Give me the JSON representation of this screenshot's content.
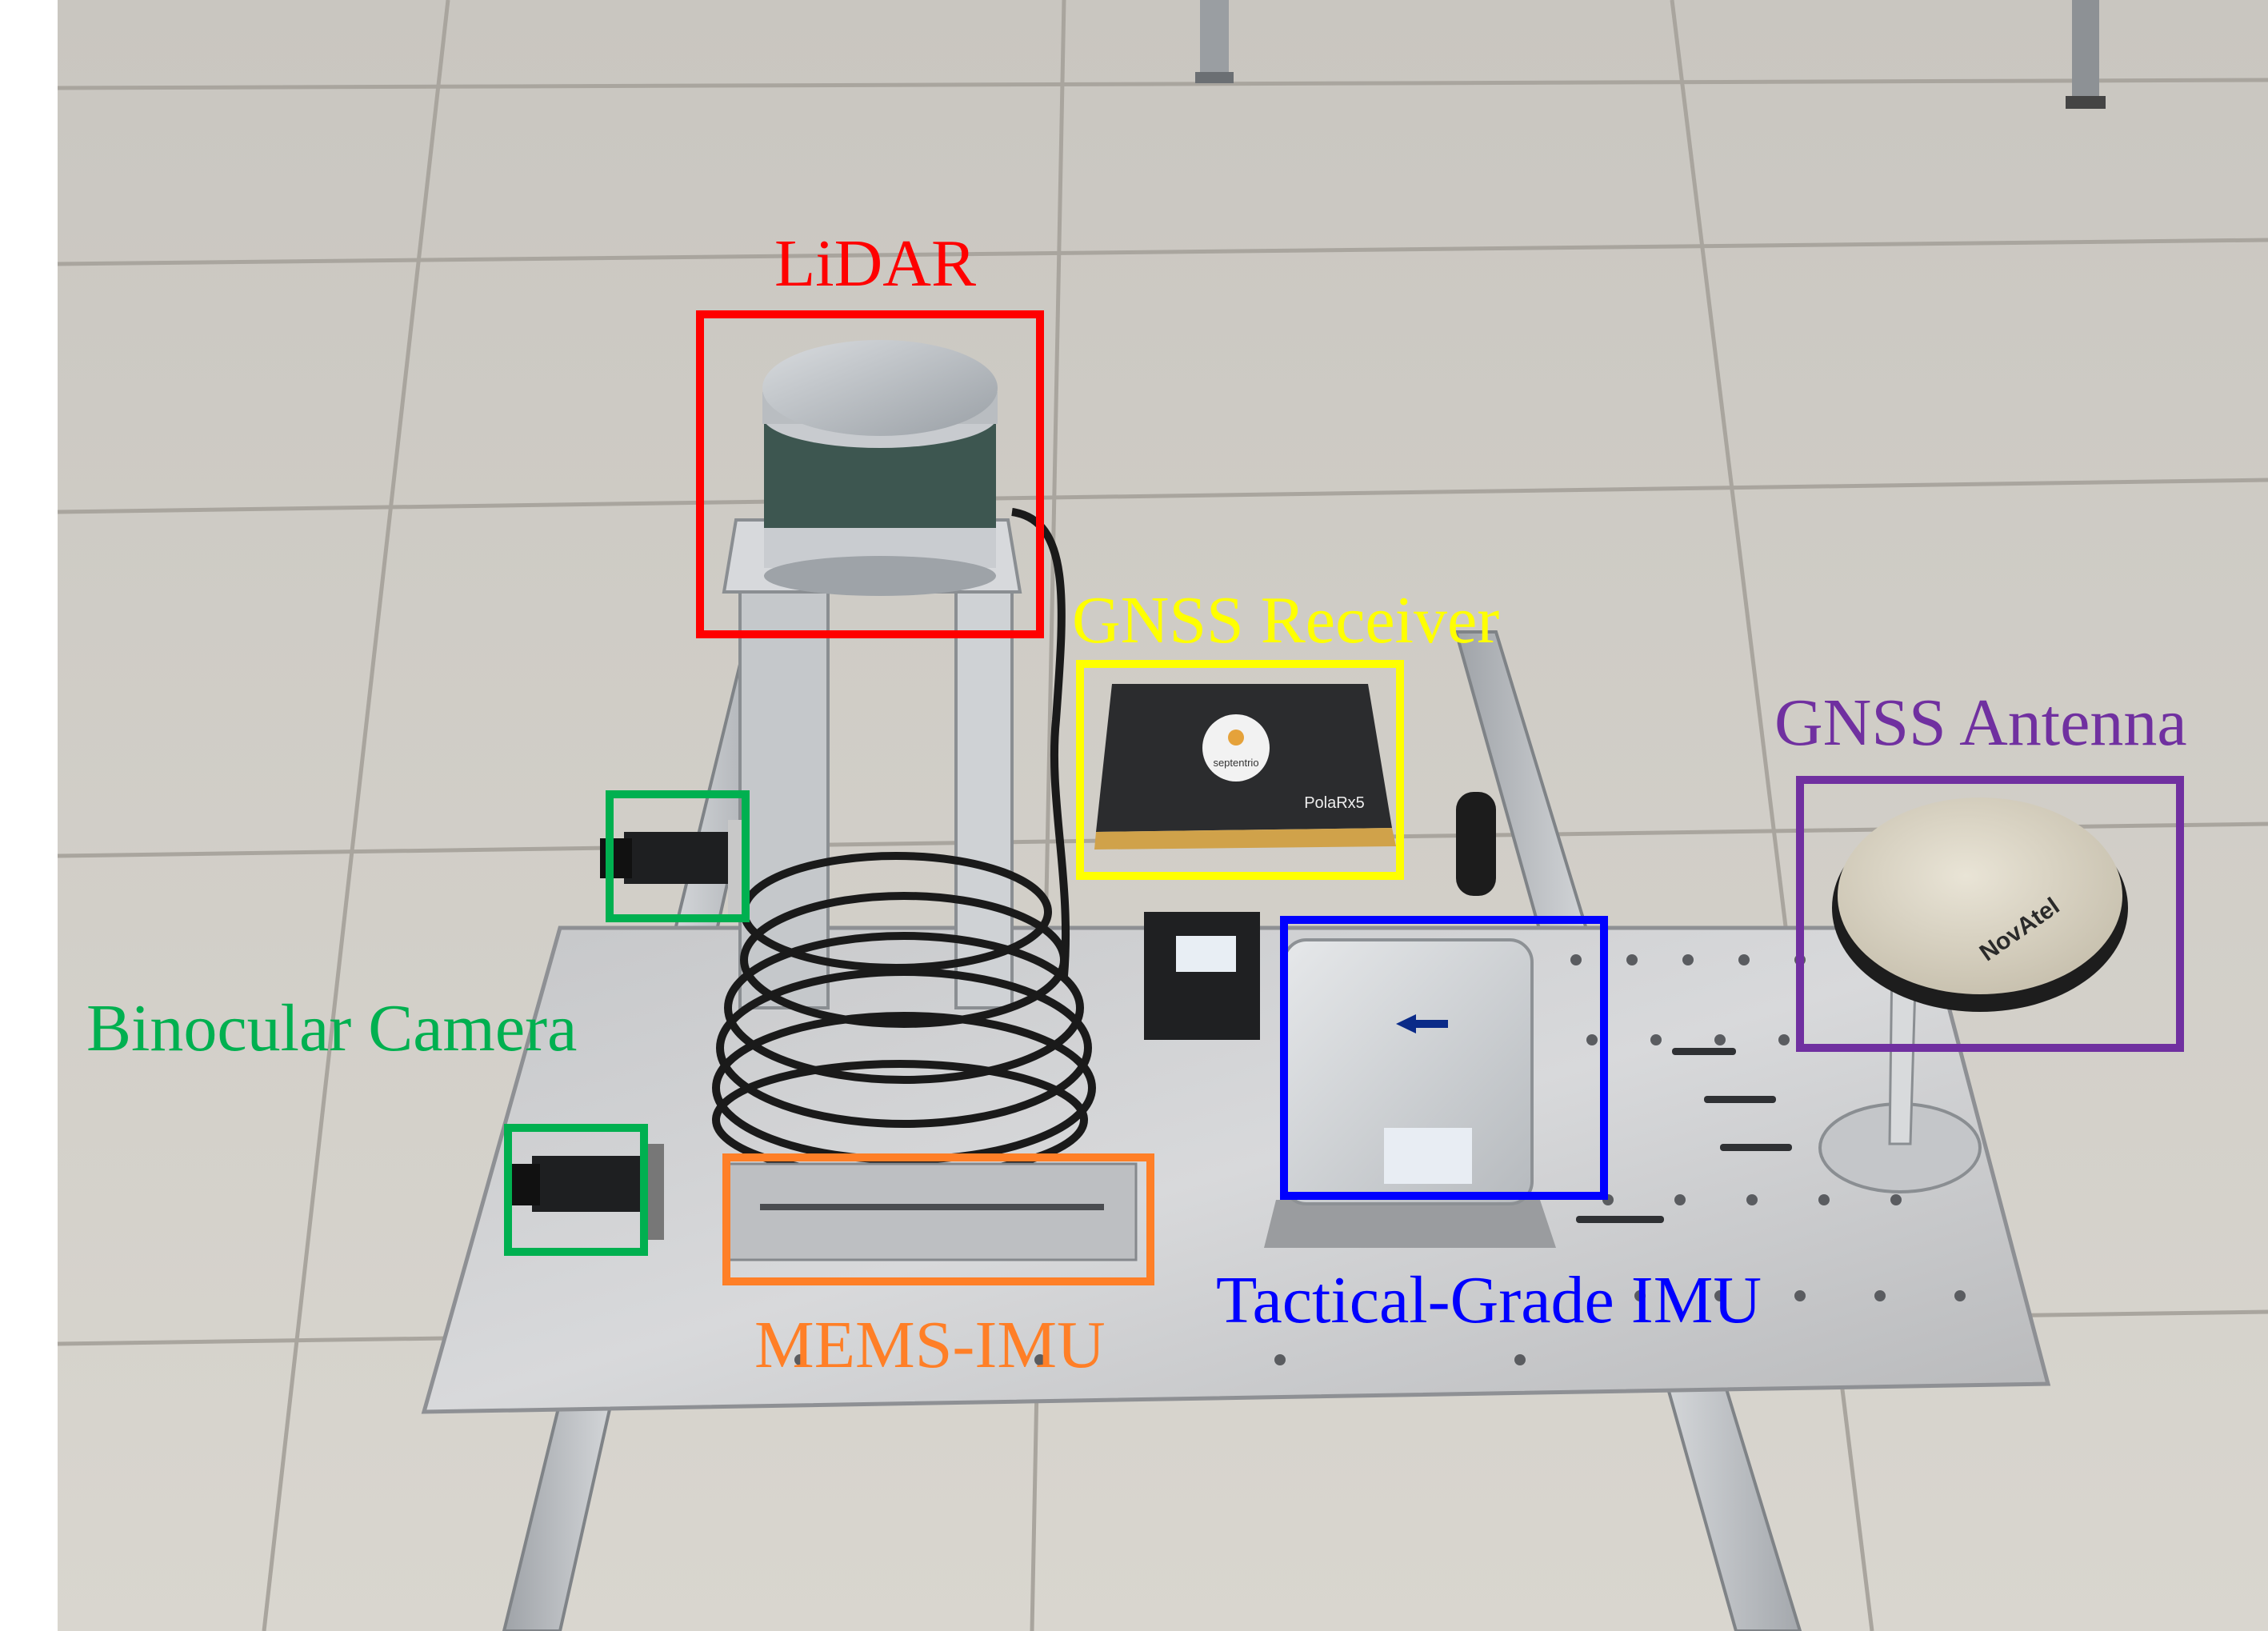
{
  "labels": {
    "lidar": "LiDAR",
    "gnss_receiver": "GNSS Receiver",
    "gnss_antenna": "GNSS Antenna",
    "binocular_camera": "Binocular Camera",
    "mems_imu": "MEMS-IMU",
    "tactical_imu": "Tactical-Grade IMU"
  },
  "device_text": {
    "receiver_brand": "septentrio",
    "receiver_model": "PolaRx5",
    "antenna_brand": "NovAtel"
  },
  "colors": {
    "lidar": "#ff0000",
    "gnss_receiver": "#ffff00",
    "gnss_antenna": "#7030a0",
    "binocular_camera": "#00b050",
    "mems_imu": "#ff7f27",
    "tactical_imu": "#0000ff"
  }
}
